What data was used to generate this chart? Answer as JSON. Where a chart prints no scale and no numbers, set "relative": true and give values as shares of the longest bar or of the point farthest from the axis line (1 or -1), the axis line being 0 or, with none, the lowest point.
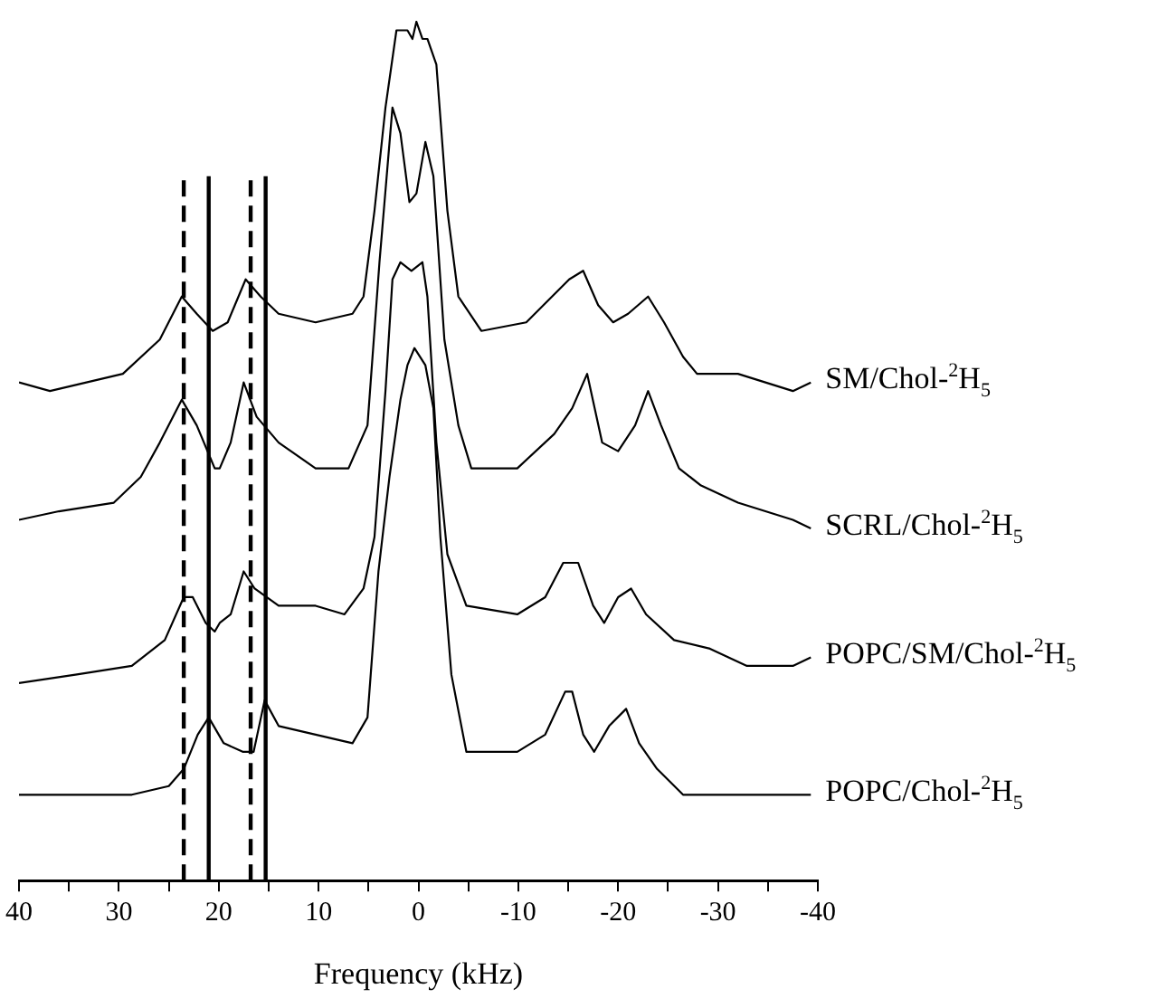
{
  "chart_data": {
    "type": "line",
    "relative": true,
    "xlabel": "Frequency (kHz)",
    "xlim": [
      40,
      -40
    ],
    "xticks": [
      40,
      {
        "value": 35,
        "label": null
      },
      30,
      {
        "value": 25,
        "label": null
      },
      20,
      {
        "value": 15,
        "label": null
      },
      10,
      {
        "value": 5,
        "label": null
      },
      0,
      {
        "value": -5,
        "label": null
      },
      -10,
      {
        "value": -15,
        "label": null
      },
      -20,
      {
        "value": -25,
        "label": null
      },
      -30,
      {
        "value": -35,
        "label": null
      },
      -40
    ],
    "grid": false,
    "legend": false,
    "marker": "none",
    "line_style": "solid",
    "series": [
      {
        "name": "SM/Chol-$^{2}$H$_{5}$",
        "color": "#000000",
        "x": [
          40,
          36.9,
          29.6,
          25.9,
          23.7,
          22.2,
          20.6,
          19.1,
          17.3,
          15.8,
          14.0,
          10.3,
          6.6,
          5.5,
          4.4,
          3.3,
          2.2,
          1.1,
          0.6,
          0.2,
          -0.4,
          -0.9,
          -1.8,
          -2.9,
          -4.0,
          -6.3,
          -10.8,
          -15.1,
          -16.5,
          -18.0,
          -19.5,
          -21.0,
          -23.0,
          -24.6,
          -26.5,
          -27.9,
          -32.0,
          -37.5,
          -39.3
        ],
        "values": [
          0.58,
          0.57,
          0.59,
          0.63,
          0.68,
          0.66,
          0.64,
          0.65,
          0.7,
          0.68,
          0.66,
          0.65,
          0.66,
          0.68,
          0.78,
          0.9,
          0.99,
          0.99,
          0.98,
          1.0,
          0.98,
          0.98,
          0.95,
          0.78,
          0.68,
          0.64,
          0.65,
          0.7,
          0.71,
          0.67,
          0.65,
          0.66,
          0.68,
          0.65,
          0.61,
          0.59,
          0.59,
          0.57,
          0.58
        ]
      },
      {
        "name": "SCRL/Chol-$^{2}$H$_{5}$",
        "color": "#000000",
        "x": [
          40,
          36.0,
          30.5,
          27.8,
          25.9,
          23.7,
          22.2,
          20.4,
          19.9,
          18.8,
          17.5,
          16.2,
          14.0,
          10.3,
          7.0,
          5.1,
          3.9,
          2.6,
          1.8,
          0.9,
          0.2,
          -0.7,
          -1.5,
          -2.6,
          -4.0,
          -5.3,
          -9.9,
          -13.6,
          -15.4,
          -16.9,
          -18.4,
          -20.0,
          -21.7,
          -23.0,
          -24.3,
          -26.1,
          -28.3,
          -32.0,
          -37.5,
          -39.3
        ],
        "values": [
          0.42,
          0.43,
          0.44,
          0.47,
          0.51,
          0.56,
          0.53,
          0.48,
          0.48,
          0.51,
          0.58,
          0.54,
          0.51,
          0.48,
          0.48,
          0.53,
          0.72,
          0.9,
          0.87,
          0.79,
          0.8,
          0.86,
          0.82,
          0.63,
          0.53,
          0.48,
          0.48,
          0.52,
          0.55,
          0.59,
          0.51,
          0.5,
          0.53,
          0.57,
          0.53,
          0.48,
          0.46,
          0.44,
          0.42,
          0.41
        ]
      },
      {
        "name": "POPC/SM/Chol-$^{2}$H$_{5}$",
        "color": "#000000",
        "x": [
          40,
          34.2,
          28.7,
          25.4,
          23.5,
          22.6,
          21.3,
          20.4,
          19.9,
          18.8,
          17.5,
          16.4,
          14.0,
          10.3,
          7.4,
          5.5,
          4.4,
          3.3,
          2.6,
          1.8,
          0.7,
          -0.4,
          -0.9,
          -1.8,
          -2.9,
          -4.8,
          -9.9,
          -12.7,
          -14.5,
          -16.0,
          -17.5,
          -18.6,
          -20.0,
          -21.3,
          -22.8,
          -25.6,
          -29.2,
          -32.9,
          -37.5,
          -39.3
        ],
        "values": [
          0.23,
          0.24,
          0.25,
          0.28,
          0.33,
          0.33,
          0.3,
          0.29,
          0.3,
          0.31,
          0.36,
          0.34,
          0.32,
          0.32,
          0.31,
          0.34,
          0.4,
          0.57,
          0.7,
          0.72,
          0.71,
          0.72,
          0.68,
          0.51,
          0.38,
          0.32,
          0.31,
          0.33,
          0.37,
          0.37,
          0.32,
          0.3,
          0.33,
          0.34,
          0.31,
          0.28,
          0.27,
          0.25,
          0.25,
          0.26
        ]
      },
      {
        "name": "POPC/Chol-$^{2}$H$_{5}$",
        "color": "#000000",
        "x": [
          40,
          34.2,
          28.7,
          25.0,
          23.5,
          22.1,
          21.0,
          19.5,
          17.6,
          16.5,
          15.4,
          14.0,
          10.3,
          6.6,
          5.1,
          4.0,
          2.9,
          1.8,
          1.1,
          0.4,
          -0.7,
          -1.5,
          -2.2,
          -3.3,
          -4.8,
          -9.9,
          -12.7,
          -14.7,
          -15.4,
          -16.5,
          -17.6,
          -19.1,
          -20.8,
          -22.1,
          -23.9,
          -26.5,
          -32.0,
          -37.5,
          -39.3
        ],
        "values": [
          0.1,
          0.1,
          0.1,
          0.11,
          0.13,
          0.17,
          0.19,
          0.16,
          0.15,
          0.15,
          0.21,
          0.18,
          0.17,
          0.16,
          0.19,
          0.36,
          0.47,
          0.56,
          0.6,
          0.62,
          0.6,
          0.55,
          0.4,
          0.24,
          0.15,
          0.15,
          0.17,
          0.22,
          0.22,
          0.17,
          0.15,
          0.18,
          0.2,
          0.16,
          0.13,
          0.1,
          0.1,
          0.1,
          0.1
        ]
      }
    ],
    "ref_lines": [
      {
        "axis": "x",
        "value": 23.5,
        "line_style": "dashed",
        "color": "#000000"
      },
      {
        "axis": "x",
        "value": 21.0,
        "line_style": "solid",
        "color": "#000000"
      },
      {
        "axis": "x",
        "value": 16.8,
        "line_style": "dashed",
        "color": "#000000"
      },
      {
        "axis": "x",
        "value": 15.3,
        "line_style": "solid",
        "color": "#000000"
      }
    ]
  }
}
